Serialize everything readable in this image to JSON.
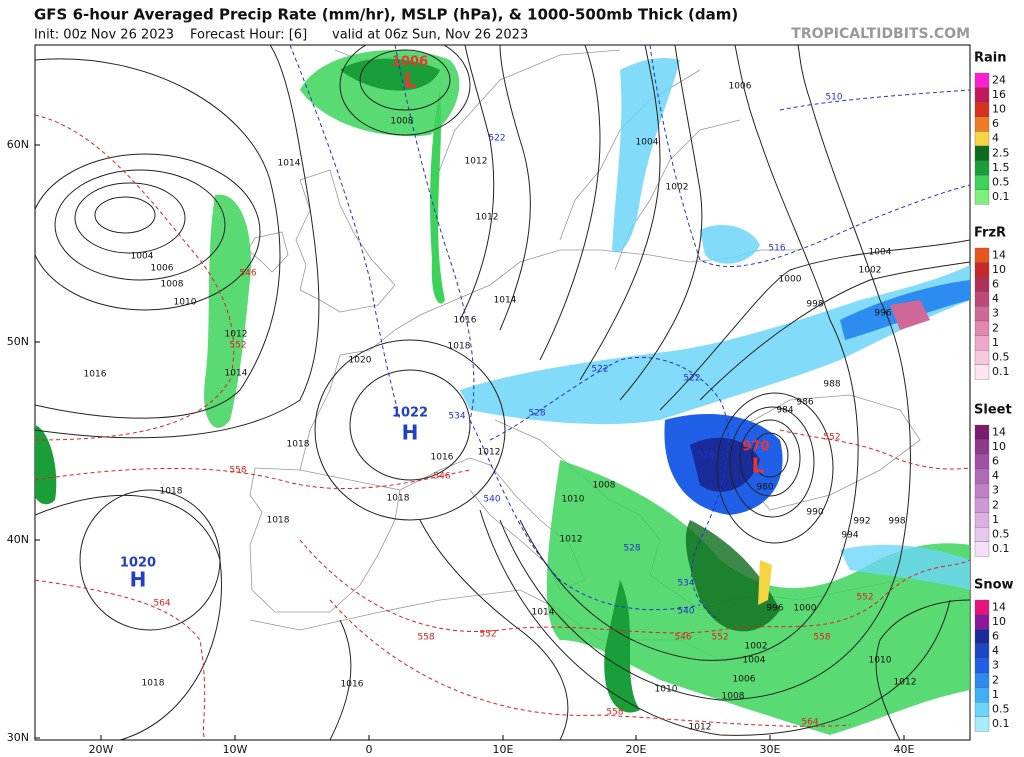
{
  "header": {
    "title": "GFS 6-hour Averaged Precip Rate (mm/hr), MSLP (hPa), & 1000-500mb Thick (dam)",
    "init": "Init: 00z Nov 26 2023",
    "forecast_hour": "Forecast Hour: [6]",
    "valid": "valid at 06z Sun, Nov 26 2023",
    "site": "TROPICALTIDBITS.COM"
  },
  "axes": {
    "lat_labels": [
      "60N",
      "50N",
      "40N",
      "30N"
    ],
    "lon_labels": [
      "20W",
      "10W",
      "0",
      "10E",
      "20E",
      "30E",
      "40E"
    ]
  },
  "centers": [
    {
      "pressure": "1006",
      "letter": "L"
    },
    {
      "pressure": "1022",
      "letter": "H"
    },
    {
      "pressure": "1020",
      "letter": "H"
    },
    {
      "pressure": "970",
      "letter": "L"
    }
  ],
  "isobar_labels": [
    "1014",
    "1004",
    "1006",
    "1008",
    "1010",
    "1012",
    "1014",
    "1016",
    "1018",
    "1018",
    "1018",
    "1016",
    "1018",
    "1008",
    "1012",
    "1012",
    "1014",
    "1016",
    "1018",
    "1020",
    "1016",
    "1012",
    "1008",
    "1004",
    "1002",
    "1006",
    "1004",
    "1002",
    "1000",
    "998",
    "996",
    "988",
    "986",
    "984",
    "980",
    "990",
    "992",
    "994",
    "998",
    "1002",
    "1004",
    "1006",
    "1008",
    "1010",
    "1012",
    "1010",
    "1012",
    "1014",
    "1012",
    "1010",
    "1018",
    "1000",
    "996"
  ],
  "thickness_labels": [
    "552",
    "546",
    "558",
    "564",
    "546",
    "558",
    "552",
    "558",
    "552",
    "546",
    "558",
    "564",
    "552",
    "552",
    "522",
    "516",
    "510",
    "522",
    "522",
    "528",
    "534",
    "540",
    "528",
    "534",
    "540",
    "528"
  ],
  "legend": [
    {
      "title": "Rain",
      "labels": [
        "24",
        "16",
        "10",
        "6",
        "4",
        "2.5",
        "1.5",
        "0.5",
        "0.1"
      ],
      "colors": [
        "#ff1fd0",
        "#c2185b",
        "#d7301f",
        "#f07b22",
        "#f5d442",
        "#0d6b1d",
        "#1a9e3a",
        "#3dd35a",
        "#7cf07a"
      ]
    },
    {
      "title": "FrzR",
      "labels": [
        "14",
        "10",
        "6",
        "4",
        "3",
        "2",
        "1",
        "0.5",
        "0.1"
      ],
      "colors": [
        "#e8541e",
        "#c62828",
        "#b0305a",
        "#c04878",
        "#d06898",
        "#e088b0",
        "#f0a8c8",
        "#f8c8dc",
        "#fde4ee"
      ]
    },
    {
      "title": "Sleet",
      "labels": [
        "14",
        "10",
        "6",
        "4",
        "3",
        "2",
        "1",
        "0.5",
        "0.1"
      ],
      "colors": [
        "#7a1d6e",
        "#8e3a8c",
        "#a050a6",
        "#b068b8",
        "#c080c8",
        "#d098d6",
        "#dcb0e2",
        "#e8c8ee",
        "#f3e0f6"
      ]
    },
    {
      "title": "Snow",
      "labels": [
        "14",
        "10",
        "6",
        "4",
        "3",
        "2",
        "1",
        "0.5",
        "0.1"
      ],
      "colors": [
        "#e8127a",
        "#8a1a9a",
        "#1a2c9a",
        "#1d45c8",
        "#2060e8",
        "#2c8cf0",
        "#40b0f4",
        "#6cd6f8",
        "#a8ecfc"
      ]
    }
  ]
}
